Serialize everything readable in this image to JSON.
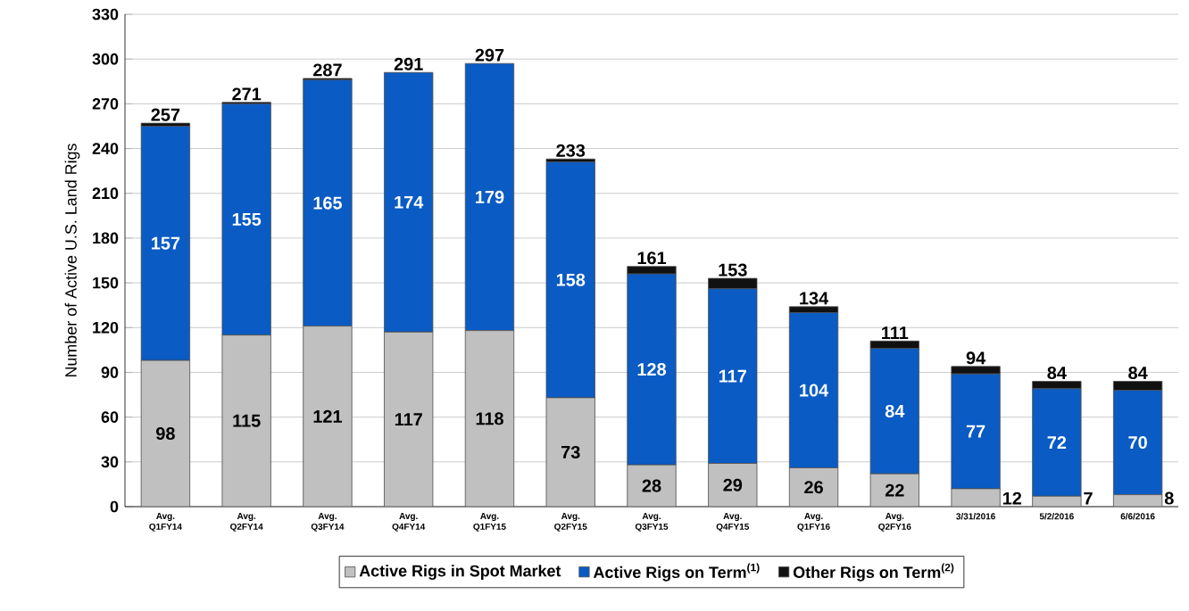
{
  "chart_data": {
    "type": "bar",
    "stacked": true,
    "ylabel": "Number of Active U.S. Land Rigs",
    "categories": [
      "Avg. Q1FY14",
      "Avg. Q2FY14",
      "Avg. Q3FY14",
      "Avg. Q4FY14",
      "Avg. Q1FY15",
      "Avg. Q2FY15",
      "Avg. Q3FY15",
      "Avg. Q4FY15",
      "Avg. Q1FY16",
      "Avg. Q2FY16",
      "3/31/2016",
      "5/2/2016",
      "6/6/2016"
    ],
    "series": [
      {
        "name": "Active Rigs in Spot Market",
        "color": "#c0c0c0",
        "values": [
          98,
          115,
          121,
          117,
          118,
          73,
          28,
          29,
          26,
          22,
          12,
          7,
          8
        ],
        "value_labels": [
          "98",
          "115",
          "121",
          "117",
          "118",
          "73",
          "28",
          "29",
          "26",
          "22",
          "12",
          "7",
          "8"
        ]
      },
      {
        "name": "Active Rigs on Term$^{(1)}$",
        "color": "#0a5bc4",
        "values": [
          157,
          155,
          165,
          174,
          179,
          158,
          128,
          117,
          104,
          84,
          77,
          72,
          70
        ],
        "value_labels": [
          "157",
          "155",
          "165",
          "174",
          "179",
          "158",
          "128",
          "117",
          "104",
          "84",
          "77",
          "72",
          "70"
        ]
      },
      {
        "name": "Other Rigs on Term$^{(2)}$",
        "color": "#111111",
        "values": [
          2,
          1,
          1,
          0,
          0,
          2,
          5,
          7,
          4,
          5,
          5,
          5,
          6
        ]
      }
    ],
    "totals": [
      "257",
      "271",
      "287",
      "291",
      "297",
      "233",
      "161",
      "153",
      "134",
      "111",
      "94",
      "84",
      "84"
    ],
    "ylim": [
      0,
      330
    ],
    "yticks": [
      0,
      30,
      60,
      90,
      120,
      150,
      180,
      210,
      240,
      270,
      300,
      330
    ],
    "grid": "y",
    "legend": "bottom"
  }
}
